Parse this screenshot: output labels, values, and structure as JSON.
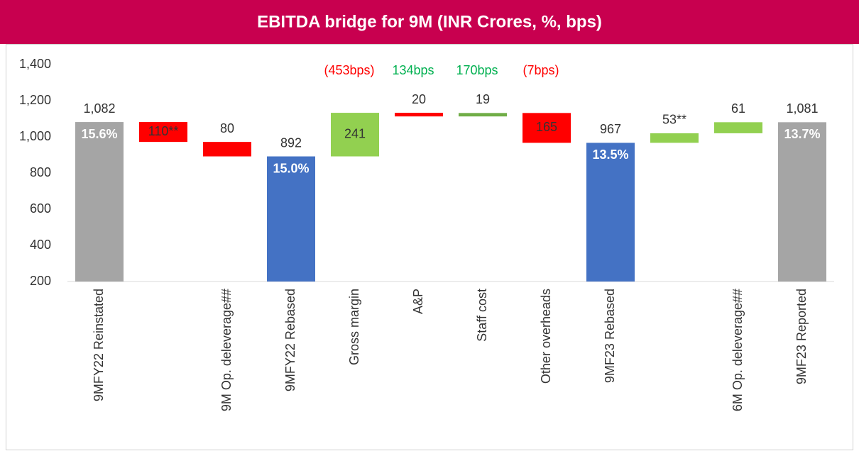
{
  "chart_data": {
    "type": "waterfall",
    "title": "EBITDA bridge for 9M (INR Crores, %, bps)",
    "categories": [
      "9MFY22 Reinstated",
      null,
      "9M Op. deleverage##",
      "9MFY22 Rebased",
      "Gross margin",
      "A&P",
      "Staff cost",
      "Other overheads",
      "9MF23 Rebased",
      null,
      "6M Op. deleverage##",
      "9MF23 Reported"
    ],
    "values": [
      1082,
      110,
      80,
      892,
      241,
      20,
      19,
      165,
      967,
      53,
      61,
      1081
    ],
    "value_labels": [
      "1,082",
      "110**",
      "80",
      "892",
      "241",
      "20",
      "19",
      "165",
      "967",
      "53**",
      "61",
      "1,081"
    ],
    "measure": [
      "total",
      "decrease",
      "decrease",
      "total",
      "increase",
      "decrease",
      "increase",
      "decrease",
      "total",
      "increase",
      "increase",
      "total"
    ],
    "colors": [
      "#a5a5a5",
      "#ff0000",
      "#ff0000",
      "#4472c4",
      "#92d050",
      "#ff0000",
      "#70ad47",
      "#ff0000",
      "#4472c4",
      "#92d050",
      "#92d050",
      "#a5a5a5"
    ],
    "margin_labels": [
      "15.6%",
      null,
      null,
      "15.0%",
      null,
      null,
      null,
      null,
      "13.5%",
      null,
      null,
      "13.7%"
    ],
    "bps_labels": [
      null,
      null,
      null,
      null,
      "(453bps)",
      "134bps",
      "170bps",
      "(7bps)",
      null,
      null,
      null,
      null
    ],
    "bps_colors": [
      null,
      null,
      null,
      null,
      "#ff0000",
      "#00b050",
      "#00b050",
      "#ff0000",
      null,
      null,
      null,
      null
    ],
    "ylim": [
      200,
      1400
    ],
    "yticks": [
      {
        "value": 200,
        "label": "200"
      },
      {
        "value": 400,
        "label": "400"
      },
      {
        "value": 600,
        "label": "600"
      },
      {
        "value": 800,
        "label": "800"
      },
      {
        "value": 1000,
        "label": "1,000"
      },
      {
        "value": 1200,
        "label": "1,200"
      },
      {
        "value": 1400,
        "label": "1,400"
      }
    ]
  }
}
